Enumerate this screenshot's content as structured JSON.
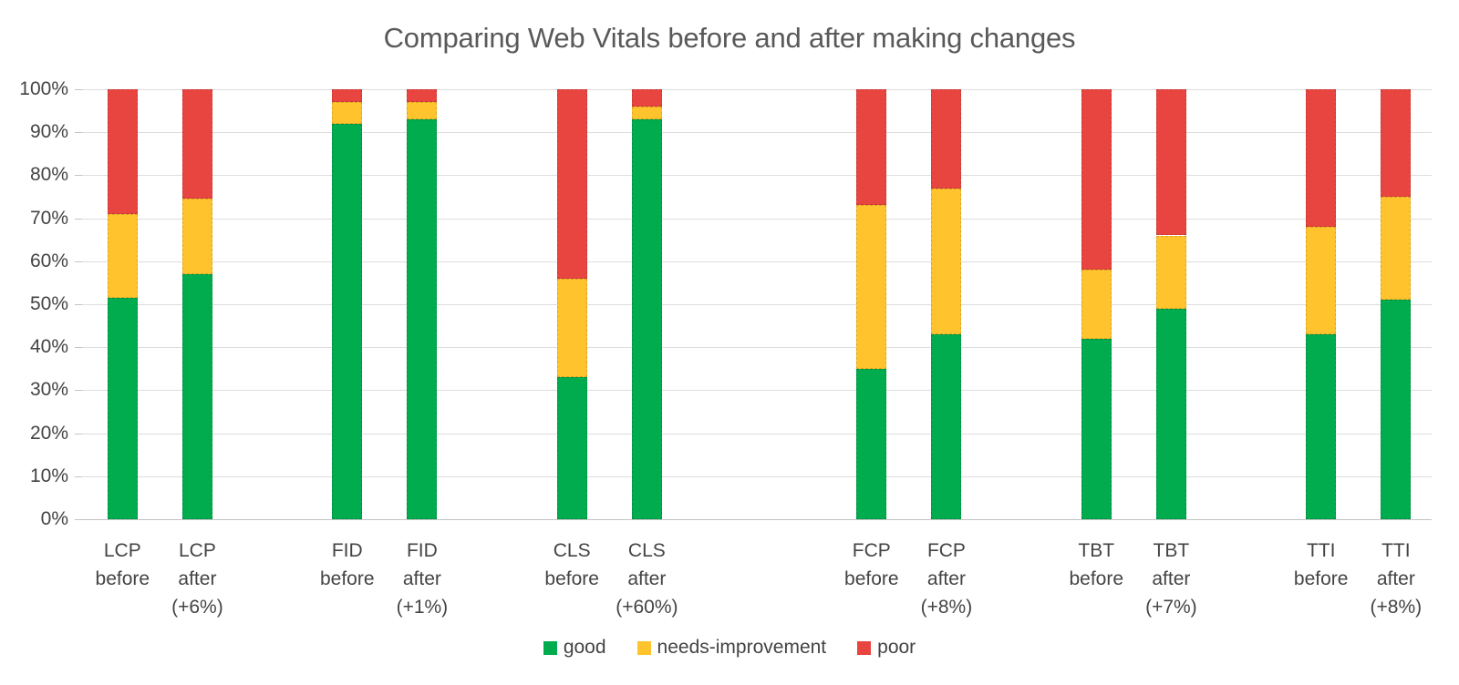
{
  "chart_data": {
    "type": "bar",
    "stacked": true,
    "unit": "%",
    "title": "Comparing Web Vitals before and after making changes",
    "categories": [
      "LCP before",
      "LCP after (+6%)",
      "FID before",
      "FID after (+1%)",
      "CLS before",
      "CLS after (+60%)",
      "FCP before",
      "FCP after (+8%)",
      "TBT before",
      "TBT after (+7%)",
      "TTI before",
      "TTI after (+8%)"
    ],
    "category_label_lines": [
      [
        "LCP",
        "before"
      ],
      [
        "LCP",
        "after",
        "(+6%)"
      ],
      [
        "FID",
        "before"
      ],
      [
        "FID",
        "after",
        "(+1%)"
      ],
      [
        "CLS",
        "before"
      ],
      [
        "CLS",
        "after",
        "(+60%)"
      ],
      [
        "FCP",
        "before"
      ],
      [
        "FCP",
        "after",
        "(+8%)"
      ],
      [
        "TBT",
        "before"
      ],
      [
        "TBT",
        "after",
        "(+7%)"
      ],
      [
        "TTI",
        "before"
      ],
      [
        "TTI",
        "after",
        "(+8%)"
      ]
    ],
    "series": [
      {
        "name": "good",
        "color": "#00AC4E",
        "values": [
          51.5,
          57,
          92,
          93,
          33,
          93,
          35,
          43,
          42,
          49,
          43,
          51
        ]
      },
      {
        "name": "needs-improvement",
        "color": "#FFC42D",
        "values": [
          19.5,
          17.5,
          5,
          4,
          23,
          3,
          38,
          34,
          16,
          17,
          25,
          24
        ]
      },
      {
        "name": "poor",
        "color": "#E94540",
        "values": [
          29,
          25.5,
          3,
          3,
          44,
          4,
          27,
          23,
          42,
          34,
          32,
          25
        ]
      }
    ],
    "ylim": [
      0,
      100
    ],
    "yticks": [
      "0%",
      "10%",
      "20%",
      "30%",
      "40%",
      "50%",
      "60%",
      "70%",
      "80%",
      "90%",
      "100%"
    ],
    "grid": true,
    "legend_position": "bottom",
    "legend": [
      {
        "label": "good",
        "color": "#00AC4E"
      },
      {
        "label": "needs-improvement",
        "color": "#FFC42D"
      },
      {
        "label": "poor",
        "color": "#E94540"
      }
    ]
  },
  "colors": {
    "good": "#00AC4E",
    "needs_improvement": "#FFC42D",
    "poor": "#E94540",
    "title_text": "#595959",
    "axis_text": "#444444",
    "gridline": "#DDDDDD",
    "axis_line": "#C3C3C3",
    "background": "#FFFFFF"
  }
}
